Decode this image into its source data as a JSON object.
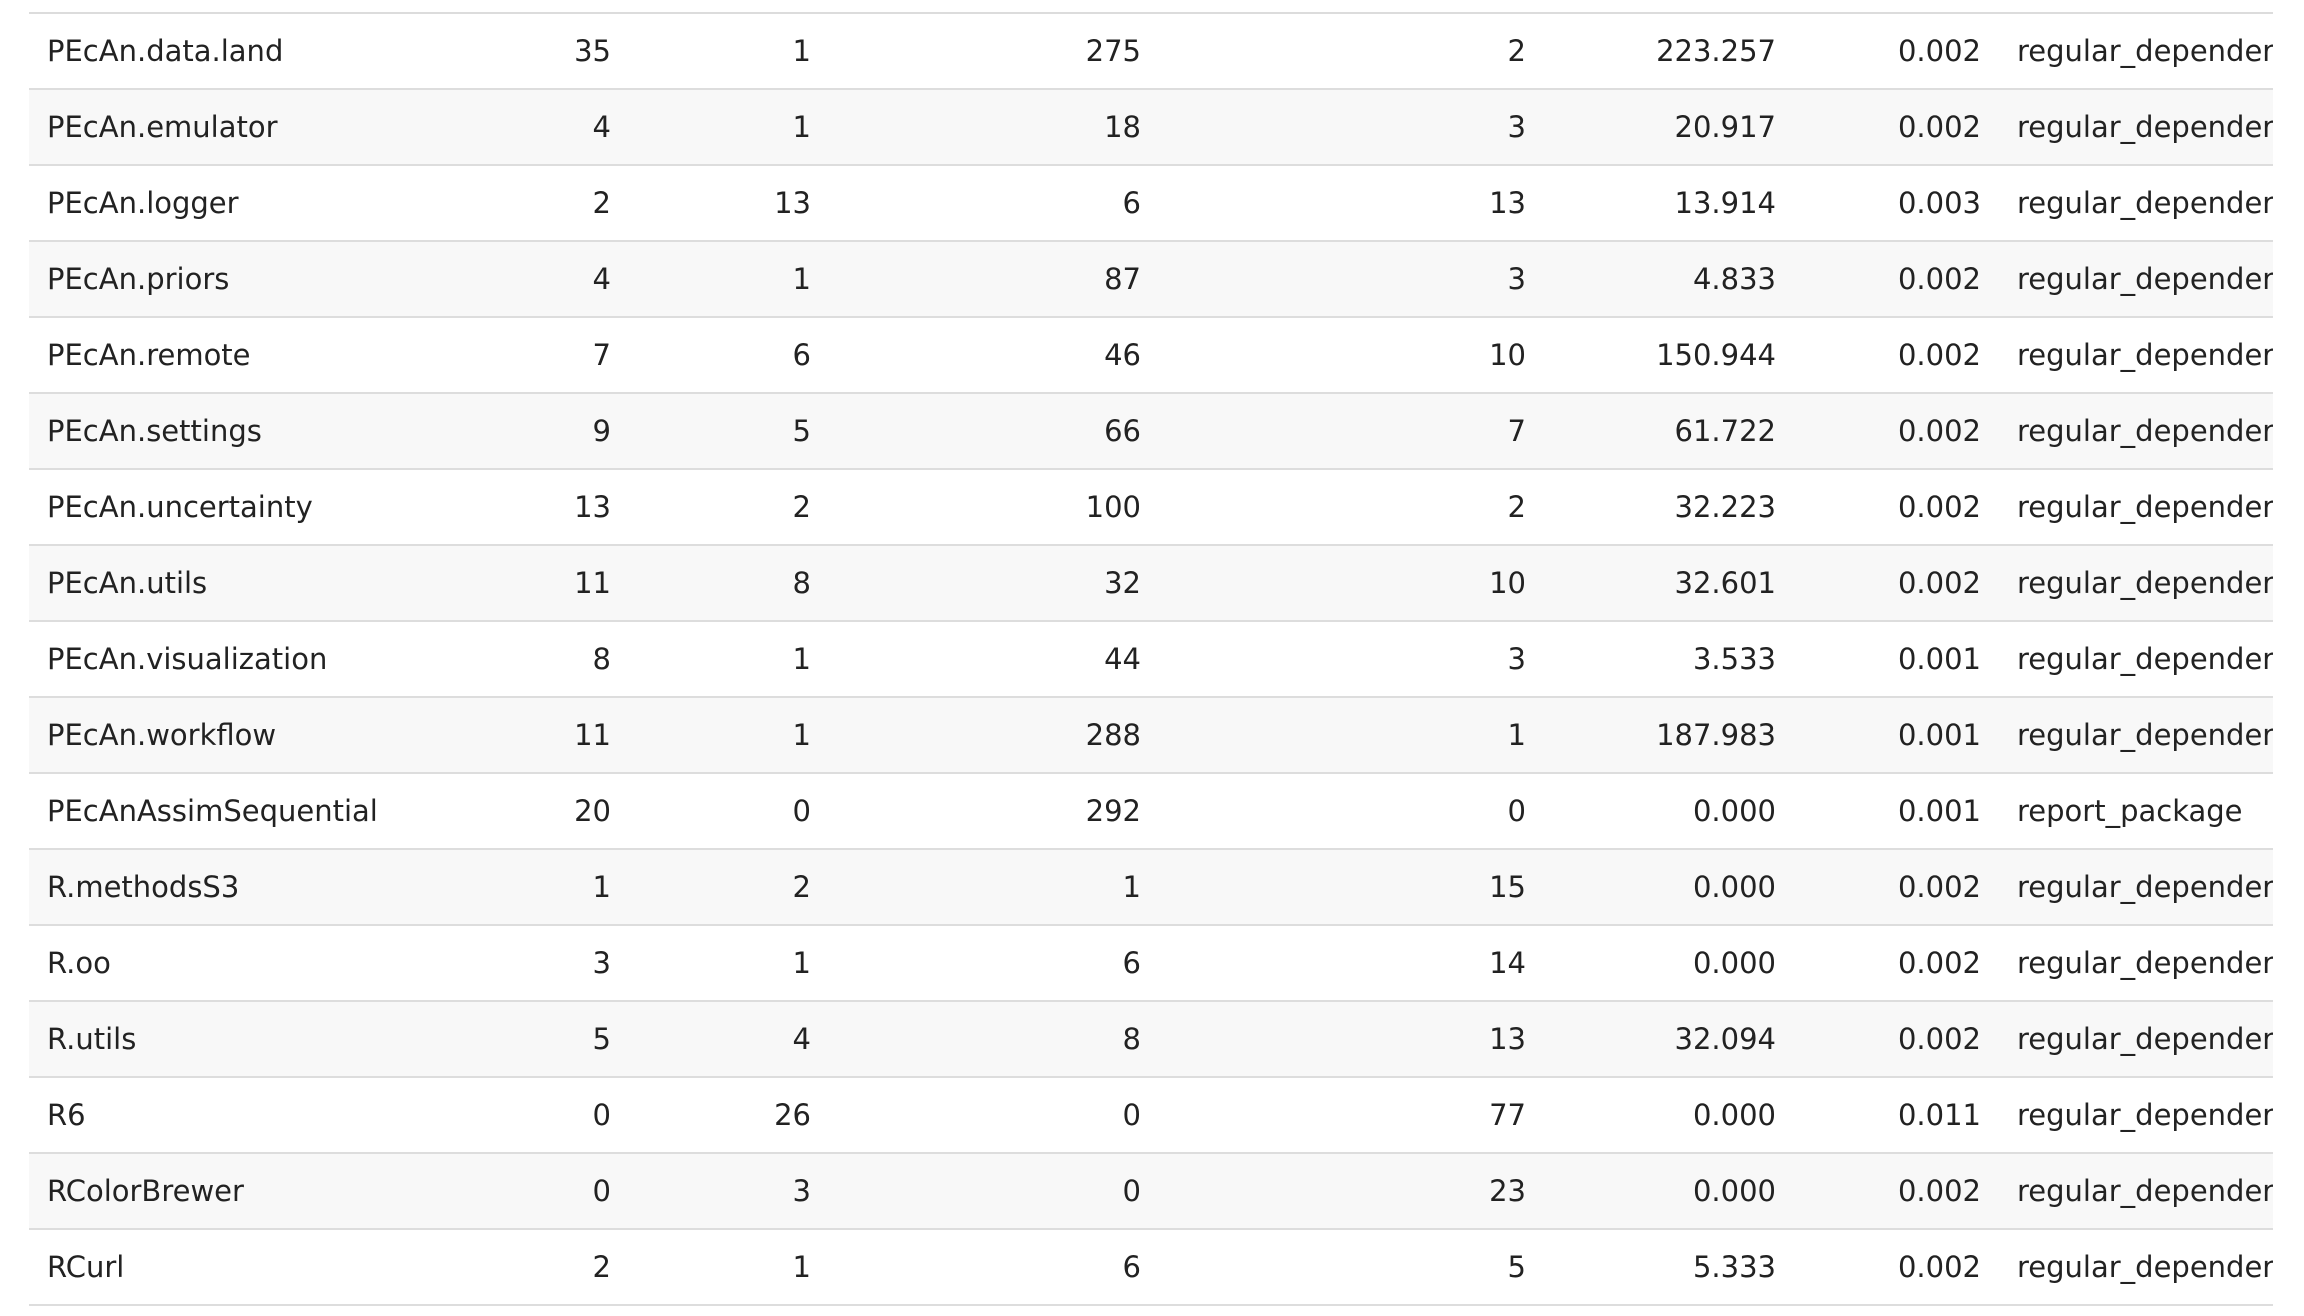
{
  "table": {
    "rows": [
      [
        "PEcAn.data.land",
        "35",
        "1",
        "275",
        "2",
        "223.257",
        "0.002",
        "regular_dependency"
      ],
      [
        "PEcAn.emulator",
        "4",
        "1",
        "18",
        "3",
        "20.917",
        "0.002",
        "regular_dependency"
      ],
      [
        "PEcAn.logger",
        "2",
        "13",
        "6",
        "13",
        "13.914",
        "0.003",
        "regular_dependency"
      ],
      [
        "PEcAn.priors",
        "4",
        "1",
        "87",
        "3",
        "4.833",
        "0.002",
        "regular_dependency"
      ],
      [
        "PEcAn.remote",
        "7",
        "6",
        "46",
        "10",
        "150.944",
        "0.002",
        "regular_dependency"
      ],
      [
        "PEcAn.settings",
        "9",
        "5",
        "66",
        "7",
        "61.722",
        "0.002",
        "regular_dependency"
      ],
      [
        "PEcAn.uncertainty",
        "13",
        "2",
        "100",
        "2",
        "32.223",
        "0.002",
        "regular_dependency"
      ],
      [
        "PEcAn.utils",
        "11",
        "8",
        "32",
        "10",
        "32.601",
        "0.002",
        "regular_dependency"
      ],
      [
        "PEcAn.visualization",
        "8",
        "1",
        "44",
        "3",
        "3.533",
        "0.001",
        "regular_dependency"
      ],
      [
        "PEcAn.workflow",
        "11",
        "1",
        "288",
        "1",
        "187.983",
        "0.001",
        "regular_dependency"
      ],
      [
        "PEcAnAssimSequential",
        "20",
        "0",
        "292",
        "0",
        "0.000",
        "0.001",
        "report_package"
      ],
      [
        "R.methodsS3",
        "1",
        "2",
        "1",
        "15",
        "0.000",
        "0.002",
        "regular_dependency"
      ],
      [
        "R.oo",
        "3",
        "1",
        "6",
        "14",
        "0.000",
        "0.002",
        "regular_dependency"
      ],
      [
        "R.utils",
        "5",
        "4",
        "8",
        "13",
        "32.094",
        "0.002",
        "regular_dependency"
      ],
      [
        "R6",
        "0",
        "26",
        "0",
        "77",
        "0.000",
        "0.011",
        "regular_dependency"
      ],
      [
        "RColorBrewer",
        "0",
        "3",
        "0",
        "23",
        "0.000",
        "0.002",
        "regular_dependency"
      ],
      [
        "RCurl",
        "2",
        "1",
        "6",
        "5",
        "5.333",
        "0.002",
        "regular_dependency"
      ]
    ]
  }
}
